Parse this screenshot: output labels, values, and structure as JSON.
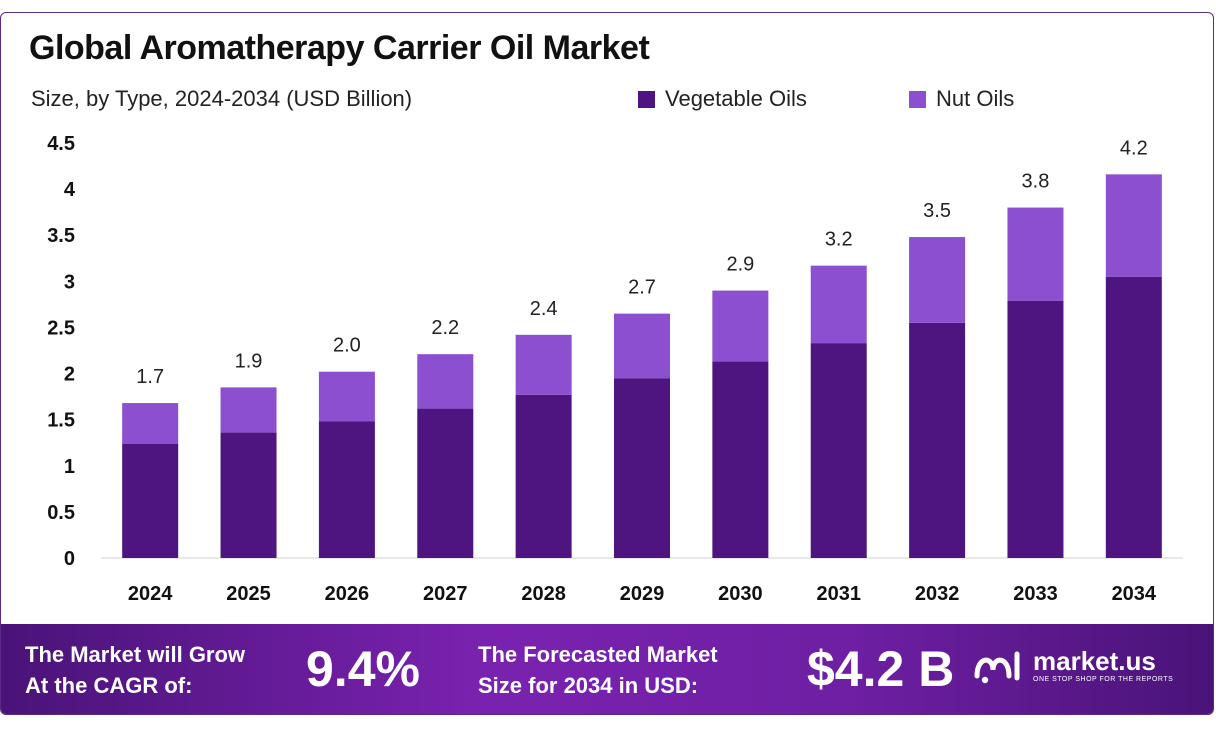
{
  "title": "Global Aromatherapy Carrier Oil Market",
  "subtitle": "Size, by Type, 2024-2034 (USD Billion)",
  "colors": {
    "vegetable": "#4e1580",
    "nut": "#8c4fcf",
    "footer_start": "#4a1378",
    "footer_mid": "#7a22b0"
  },
  "chart_data": {
    "type": "bar",
    "stacked": true,
    "categories": [
      "2024",
      "2025",
      "2026",
      "2027",
      "2028",
      "2029",
      "2030",
      "2031",
      "2032",
      "2033",
      "2034"
    ],
    "series": [
      {
        "name": "Vegetable Oils",
        "color": "#4e1580",
        "values": [
          1.24,
          1.36,
          1.48,
          1.62,
          1.77,
          1.95,
          2.13,
          2.33,
          2.55,
          2.79,
          3.05
        ]
      },
      {
        "name": "Nut Oils",
        "color": "#8c4fcf",
        "values": [
          0.44,
          0.49,
          0.54,
          0.59,
          0.65,
          0.7,
          0.77,
          0.84,
          0.93,
          1.01,
          1.11
        ]
      }
    ],
    "totals_labels": [
      "1.7",
      "1.9",
      "2.0",
      "2.2",
      "2.4",
      "2.7",
      "2.9",
      "3.2",
      "3.5",
      "3.8",
      "4.2"
    ],
    "yticks": [
      "0",
      "0.5",
      "1",
      "1.5",
      "2",
      "2.5",
      "3",
      "3.5",
      "4",
      "4.5"
    ],
    "ylim": [
      0,
      4.5
    ],
    "xlabel": "",
    "ylabel": "",
    "grid": false,
    "legend_position": "top-right"
  },
  "footer": {
    "cagr_line1": "The Market will Grow",
    "cagr_line2": "At the CAGR of:",
    "cagr_value": "9.4%",
    "forecast_line1": "The Forecasted Market",
    "forecast_line2": "Size for 2034 in USD:",
    "forecast_value": "$4.2 B"
  },
  "logo": {
    "name": "market.us",
    "tagline": "ONE STOP SHOP FOR THE REPORTS",
    "icon": "market-us-logo-icon"
  }
}
